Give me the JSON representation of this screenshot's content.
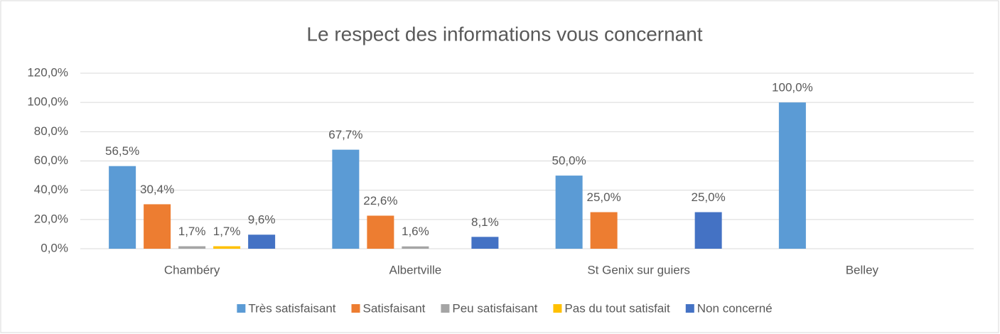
{
  "chart_data": {
    "type": "bar",
    "title": "Le respect des informations vous concernant",
    "categories": [
      "Chambéry",
      "Albertville",
      "St Genix sur guiers",
      "Belley"
    ],
    "series": [
      {
        "name": "Très satisfaisant",
        "color": "#5b9bd5",
        "values": [
          56.5,
          67.7,
          50.0,
          100.0
        ],
        "value_labels": [
          "56,5%",
          "67,7%",
          "50,0%",
          "100,0%"
        ]
      },
      {
        "name": "Satisfaisant",
        "color": "#ed7d31",
        "values": [
          30.4,
          22.6,
          25.0,
          null
        ],
        "value_labels": [
          "30,4%",
          "22,6%",
          "25,0%",
          null
        ]
      },
      {
        "name": "Peu satisfaisant",
        "color": "#a5a5a5",
        "values": [
          1.7,
          1.6,
          null,
          null
        ],
        "value_labels": [
          "1,7%",
          "1,6%",
          null,
          null
        ]
      },
      {
        "name": "Pas du tout satisfait",
        "color": "#ffc000",
        "values": [
          1.7,
          null,
          null,
          null
        ],
        "value_labels": [
          "1,7%",
          null,
          null,
          null
        ]
      },
      {
        "name": "Non concerné",
        "color": "#4472c4",
        "values": [
          9.6,
          8.1,
          25.0,
          null
        ],
        "value_labels": [
          "9,6%",
          "8,1%",
          "25,0%",
          null
        ]
      }
    ],
    "ylim": [
      0,
      120
    ],
    "yticks": [
      {
        "value": 0,
        "label": "0,0%"
      },
      {
        "value": 20,
        "label": "20,0%"
      },
      {
        "value": 40,
        "label": "40,0%"
      },
      {
        "value": 60,
        "label": "60,0%"
      },
      {
        "value": 80,
        "label": "80,0%"
      },
      {
        "value": 100,
        "label": "100,0%"
      },
      {
        "value": 120,
        "label": "120,0%"
      }
    ],
    "grid": true,
    "legend": "bottom"
  }
}
